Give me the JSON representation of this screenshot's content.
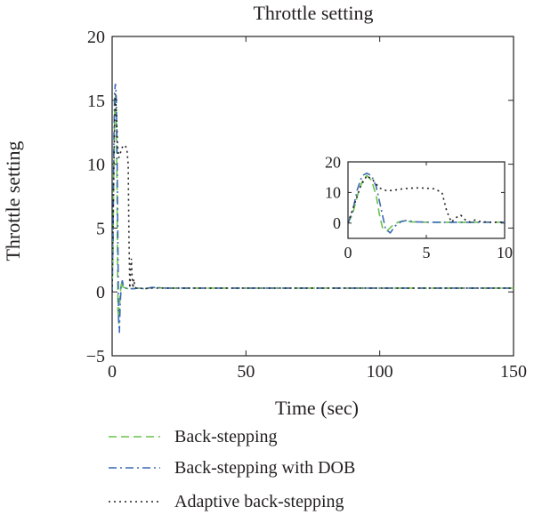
{
  "chart_data": {
    "type": "line",
    "title": "Throttle setting",
    "xlabel": "Time (sec)",
    "ylabel": "Throttle setting",
    "xlim": [
      0,
      150
    ],
    "ylim": [
      -5,
      20
    ],
    "xticks": [
      0,
      50,
      100,
      150
    ],
    "yticks": [
      -5,
      0,
      5,
      10,
      15,
      20
    ],
    "grid": false,
    "legend_position": "below plot",
    "series": [
      {
        "name": "Back-stepping",
        "color": "#6cc24a",
        "dash": "dashed",
        "x": [
          0,
          0.3,
          0.6,
          0.9,
          1.2,
          1.5,
          1.8,
          2.0,
          2.2,
          2.5,
          2.8,
          3.2,
          3.6,
          4.0,
          5,
          6,
          7,
          8,
          10,
          12,
          15,
          20,
          30,
          50,
          75,
          100,
          125,
          150
        ],
        "y": [
          0,
          3,
          9,
          13.5,
          15.5,
          14,
          9,
          3,
          -1.5,
          -2.5,
          -1,
          0.3,
          0.8,
          0.4,
          0.3,
          0.25,
          0.25,
          0.25,
          0.3,
          0.25,
          0.35,
          0.3,
          0.3,
          0.3,
          0.3,
          0.3,
          0.3,
          0.3
        ]
      },
      {
        "name": "Back-stepping with DOB",
        "color": "#3a6bb3",
        "dash": "dashdot",
        "x": [
          0,
          0.3,
          0.6,
          0.9,
          1.2,
          1.5,
          1.8,
          2.1,
          2.4,
          2.7,
          3.0,
          3.4,
          3.8,
          4.2,
          5,
          6,
          7,
          8,
          10,
          12,
          15,
          20,
          30,
          50,
          75,
          100,
          125,
          150
        ],
        "y": [
          0,
          4,
          11,
          15.5,
          16.3,
          15.5,
          12,
          5,
          -2,
          -3.2,
          -1,
          0.5,
          0.9,
          0.4,
          0.3,
          0.25,
          0.25,
          0.25,
          0.3,
          0.25,
          0.35,
          0.3,
          0.3,
          0.3,
          0.3,
          0.3,
          0.3,
          0.3
        ]
      },
      {
        "name": "Adaptive back-stepping",
        "color": "#231f20",
        "dash": "dotted",
        "x": [
          0,
          0.4,
          0.8,
          1.2,
          1.6,
          2.0,
          2.5,
          3.0,
          3.5,
          4.0,
          4.5,
          5.0,
          5.5,
          6.0,
          6.3,
          6.6,
          6.9,
          7.2,
          7.5,
          7.8,
          8.1,
          8.5,
          9,
          10,
          12,
          15,
          20,
          30,
          50,
          75,
          100,
          125,
          150
        ],
        "y": [
          0,
          6,
          12,
          15.5,
          14,
          11.5,
          10.5,
          10.8,
          11.2,
          11.4,
          11.5,
          11.4,
          11.2,
          10,
          4,
          0.3,
          1.8,
          2.6,
          1.0,
          0.3,
          1.0,
          0.4,
          0.3,
          0.3,
          0.25,
          0.3,
          0.3,
          0.3,
          0.3,
          0.3,
          0.3,
          0.3,
          0.3
        ]
      }
    ],
    "inset": {
      "xlim": [
        0,
        10
      ],
      "ylim": [
        -5,
        20
      ],
      "xticks": [
        0,
        5,
        10
      ],
      "yticks": [
        0,
        10,
        20
      ]
    }
  }
}
